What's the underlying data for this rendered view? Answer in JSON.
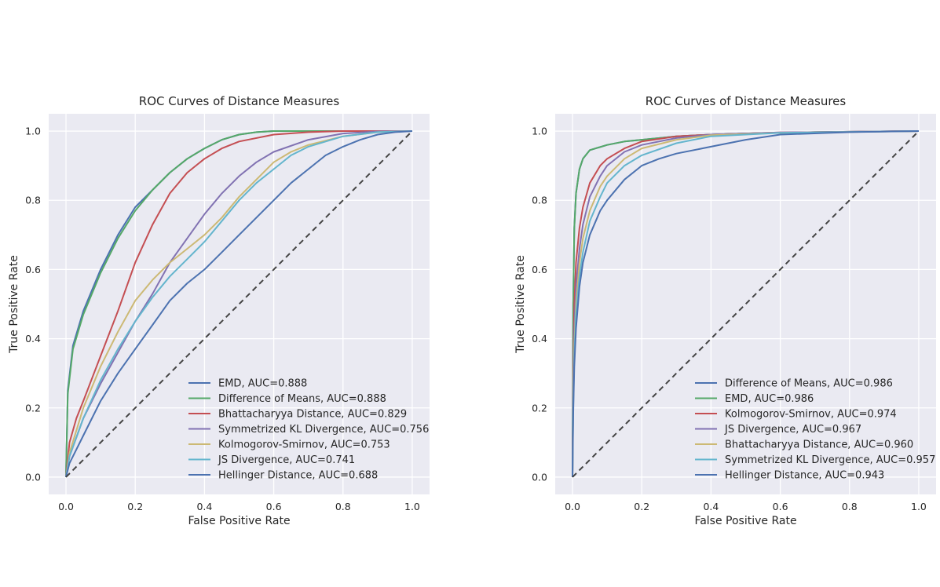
{
  "chart_data": [
    {
      "type": "line",
      "title": "ROC Curves of Distance Measures",
      "xlabel": "False Positive Rate",
      "ylabel": "True Positive Rate",
      "xlim": [
        -0.05,
        1.05
      ],
      "ylim": [
        -0.05,
        1.05
      ],
      "x_ticks": [
        "0.0",
        "0.2",
        "0.4",
        "0.6",
        "0.8",
        "1.0"
      ],
      "y_ticks": [
        "0.0",
        "0.2",
        "0.4",
        "0.6",
        "0.8",
        "1.0"
      ],
      "grid": true,
      "legend_position": "lower-right",
      "series": [
        {
          "name": "EMD, AUC=0.888",
          "color": "#4c72b0",
          "points": [
            [
              0,
              0
            ],
            [
              0.005,
              0.25
            ],
            [
              0.02,
              0.38
            ],
            [
              0.05,
              0.48
            ],
            [
              0.1,
              0.6
            ],
            [
              0.15,
              0.7
            ],
            [
              0.2,
              0.78
            ],
            [
              0.25,
              0.83
            ],
            [
              0.3,
              0.88
            ],
            [
              0.35,
              0.92
            ],
            [
              0.4,
              0.95
            ],
            [
              0.45,
              0.975
            ],
            [
              0.5,
              0.99
            ],
            [
              0.55,
              0.997
            ],
            [
              0.6,
              1.0
            ],
            [
              0.7,
              1.0
            ],
            [
              1,
              1
            ]
          ]
        },
        {
          "name": "Difference of Means, AUC=0.888",
          "color": "#55a868",
          "points": [
            [
              0,
              0
            ],
            [
              0.005,
              0.24
            ],
            [
              0.02,
              0.37
            ],
            [
              0.05,
              0.47
            ],
            [
              0.1,
              0.59
            ],
            [
              0.15,
              0.69
            ],
            [
              0.2,
              0.77
            ],
            [
              0.25,
              0.83
            ],
            [
              0.3,
              0.88
            ],
            [
              0.35,
              0.92
            ],
            [
              0.4,
              0.95
            ],
            [
              0.45,
              0.975
            ],
            [
              0.5,
              0.99
            ],
            [
              0.55,
              0.997
            ],
            [
              0.6,
              1.0
            ],
            [
              0.7,
              1.0
            ],
            [
              1,
              1
            ]
          ]
        },
        {
          "name": "Bhattacharyya Distance, AUC=0.829",
          "color": "#c44e52",
          "points": [
            [
              0,
              0
            ],
            [
              0.01,
              0.1
            ],
            [
              0.03,
              0.17
            ],
            [
              0.05,
              0.22
            ],
            [
              0.1,
              0.35
            ],
            [
              0.15,
              0.48
            ],
            [
              0.2,
              0.62
            ],
            [
              0.25,
              0.73
            ],
            [
              0.3,
              0.82
            ],
            [
              0.35,
              0.88
            ],
            [
              0.4,
              0.92
            ],
            [
              0.45,
              0.95
            ],
            [
              0.5,
              0.97
            ],
            [
              0.6,
              0.99
            ],
            [
              0.7,
              0.997
            ],
            [
              0.8,
              1.0
            ],
            [
              1,
              1
            ]
          ]
        },
        {
          "name": "Symmetrized KL Divergence, AUC=0.756",
          "color": "#8172b2",
          "points": [
            [
              0,
              0
            ],
            [
              0.01,
              0.06
            ],
            [
              0.05,
              0.17
            ],
            [
              0.1,
              0.27
            ],
            [
              0.15,
              0.36
            ],
            [
              0.2,
              0.45
            ],
            [
              0.25,
              0.53
            ],
            [
              0.3,
              0.62
            ],
            [
              0.35,
              0.69
            ],
            [
              0.4,
              0.76
            ],
            [
              0.45,
              0.82
            ],
            [
              0.5,
              0.87
            ],
            [
              0.55,
              0.91
            ],
            [
              0.6,
              0.94
            ],
            [
              0.7,
              0.975
            ],
            [
              0.8,
              0.993
            ],
            [
              0.9,
              0.999
            ],
            [
              1,
              1
            ]
          ]
        },
        {
          "name": "Kolmogorov-Smirnov, AUC=0.753",
          "color": "#ccb974",
          "points": [
            [
              0,
              0
            ],
            [
              0.01,
              0.07
            ],
            [
              0.05,
              0.2
            ],
            [
              0.1,
              0.32
            ],
            [
              0.15,
              0.42
            ],
            [
              0.2,
              0.51
            ],
            [
              0.25,
              0.57
            ],
            [
              0.3,
              0.62
            ],
            [
              0.35,
              0.66
            ],
            [
              0.4,
              0.7
            ],
            [
              0.45,
              0.75
            ],
            [
              0.5,
              0.81
            ],
            [
              0.55,
              0.86
            ],
            [
              0.6,
              0.91
            ],
            [
              0.65,
              0.94
            ],
            [
              0.7,
              0.96
            ],
            [
              0.8,
              0.985
            ],
            [
              0.9,
              0.997
            ],
            [
              1,
              1
            ]
          ]
        },
        {
          "name": "JS Divergence, AUC=0.741",
          "color": "#64b5cd",
          "points": [
            [
              0,
              0
            ],
            [
              0.01,
              0.06
            ],
            [
              0.05,
              0.17
            ],
            [
              0.1,
              0.28
            ],
            [
              0.15,
              0.37
            ],
            [
              0.2,
              0.45
            ],
            [
              0.25,
              0.52
            ],
            [
              0.3,
              0.58
            ],
            [
              0.35,
              0.63
            ],
            [
              0.4,
              0.68
            ],
            [
              0.45,
              0.74
            ],
            [
              0.5,
              0.8
            ],
            [
              0.55,
              0.85
            ],
            [
              0.6,
              0.89
            ],
            [
              0.65,
              0.93
            ],
            [
              0.7,
              0.955
            ],
            [
              0.8,
              0.985
            ],
            [
              0.9,
              0.997
            ],
            [
              1,
              1
            ]
          ]
        },
        {
          "name": "Hellinger Distance, AUC=0.688",
          "color": "#4c72b0",
          "points": [
            [
              0,
              0
            ],
            [
              0.01,
              0.04
            ],
            [
              0.05,
              0.12
            ],
            [
              0.1,
              0.22
            ],
            [
              0.15,
              0.3
            ],
            [
              0.2,
              0.37
            ],
            [
              0.25,
              0.44
            ],
            [
              0.3,
              0.51
            ],
            [
              0.35,
              0.56
            ],
            [
              0.4,
              0.6
            ],
            [
              0.45,
              0.65
            ],
            [
              0.5,
              0.7
            ],
            [
              0.55,
              0.75
            ],
            [
              0.6,
              0.8
            ],
            [
              0.65,
              0.85
            ],
            [
              0.7,
              0.89
            ],
            [
              0.75,
              0.93
            ],
            [
              0.8,
              0.955
            ],
            [
              0.85,
              0.975
            ],
            [
              0.9,
              0.99
            ],
            [
              0.95,
              0.997
            ],
            [
              1,
              1
            ]
          ]
        }
      ]
    },
    {
      "type": "line",
      "title": "ROC Curves of Distance Measures",
      "xlabel": "False Positive Rate",
      "ylabel": "True Positive Rate",
      "xlim": [
        -0.05,
        1.05
      ],
      "ylim": [
        -0.05,
        1.05
      ],
      "x_ticks": [
        "0.0",
        "0.2",
        "0.4",
        "0.6",
        "0.8",
        "1.0"
      ],
      "y_ticks": [
        "0.0",
        "0.2",
        "0.4",
        "0.6",
        "0.8",
        "1.0"
      ],
      "grid": true,
      "legend_position": "lower-right",
      "series": [
        {
          "name": "Difference of Means, AUC=0.986",
          "color": "#4c72b0",
          "points": [
            [
              0,
              0
            ],
            [
              0.002,
              0.5
            ],
            [
              0.005,
              0.72
            ],
            [
              0.01,
              0.82
            ],
            [
              0.02,
              0.89
            ],
            [
              0.03,
              0.92
            ],
            [
              0.05,
              0.945
            ],
            [
              0.1,
              0.96
            ],
            [
              0.15,
              0.97
            ],
            [
              0.2,
              0.975
            ],
            [
              0.3,
              0.985
            ],
            [
              0.4,
              0.99
            ],
            [
              0.5,
              0.993
            ],
            [
              0.7,
              0.997
            ],
            [
              1,
              1
            ]
          ]
        },
        {
          "name": "EMD, AUC=0.986",
          "color": "#55a868",
          "points": [
            [
              0,
              0
            ],
            [
              0.002,
              0.5
            ],
            [
              0.005,
              0.72
            ],
            [
              0.01,
              0.82
            ],
            [
              0.02,
              0.89
            ],
            [
              0.03,
              0.92
            ],
            [
              0.05,
              0.945
            ],
            [
              0.1,
              0.96
            ],
            [
              0.15,
              0.97
            ],
            [
              0.2,
              0.975
            ],
            [
              0.3,
              0.985
            ],
            [
              0.4,
              0.99
            ],
            [
              0.5,
              0.993
            ],
            [
              0.7,
              0.997
            ],
            [
              1,
              1
            ]
          ]
        },
        {
          "name": "Kolmogorov-Smirnov, AUC=0.974",
          "color": "#c44e52",
          "points": [
            [
              0,
              0
            ],
            [
              0.002,
              0.3
            ],
            [
              0.005,
              0.5
            ],
            [
              0.01,
              0.62
            ],
            [
              0.02,
              0.72
            ],
            [
              0.03,
              0.78
            ],
            [
              0.05,
              0.85
            ],
            [
              0.08,
              0.9
            ],
            [
              0.1,
              0.92
            ],
            [
              0.15,
              0.95
            ],
            [
              0.2,
              0.97
            ],
            [
              0.3,
              0.985
            ],
            [
              0.4,
              0.99
            ],
            [
              0.6,
              0.996
            ],
            [
              1,
              1
            ]
          ]
        },
        {
          "name": "JS Divergence, AUC=0.967",
          "color": "#8172b2",
          "points": [
            [
              0,
              0
            ],
            [
              0.002,
              0.25
            ],
            [
              0.005,
              0.42
            ],
            [
              0.01,
              0.55
            ],
            [
              0.02,
              0.66
            ],
            [
              0.03,
              0.73
            ],
            [
              0.05,
              0.81
            ],
            [
              0.08,
              0.87
            ],
            [
              0.1,
              0.9
            ],
            [
              0.15,
              0.94
            ],
            [
              0.2,
              0.96
            ],
            [
              0.3,
              0.98
            ],
            [
              0.4,
              0.99
            ],
            [
              0.6,
              0.996
            ],
            [
              1,
              1
            ]
          ]
        },
        {
          "name": "Bhattacharyya Distance, AUC=0.960",
          "color": "#ccb974",
          "points": [
            [
              0,
              0
            ],
            [
              0.002,
              0.22
            ],
            [
              0.005,
              0.38
            ],
            [
              0.01,
              0.5
            ],
            [
              0.02,
              0.62
            ],
            [
              0.03,
              0.69
            ],
            [
              0.05,
              0.77
            ],
            [
              0.08,
              0.84
            ],
            [
              0.1,
              0.87
            ],
            [
              0.15,
              0.92
            ],
            [
              0.2,
              0.95
            ],
            [
              0.3,
              0.975
            ],
            [
              0.4,
              0.988
            ],
            [
              0.6,
              0.995
            ],
            [
              1,
              1
            ]
          ]
        },
        {
          "name": "Symmetrized KL Divergence, AUC=0.957",
          "color": "#64b5cd",
          "points": [
            [
              0,
              0
            ],
            [
              0.002,
              0.2
            ],
            [
              0.005,
              0.35
            ],
            [
              0.01,
              0.47
            ],
            [
              0.02,
              0.58
            ],
            [
              0.03,
              0.65
            ],
            [
              0.05,
              0.74
            ],
            [
              0.08,
              0.81
            ],
            [
              0.1,
              0.85
            ],
            [
              0.15,
              0.9
            ],
            [
              0.2,
              0.93
            ],
            [
              0.3,
              0.965
            ],
            [
              0.4,
              0.985
            ],
            [
              0.6,
              0.995
            ],
            [
              1,
              1
            ]
          ]
        },
        {
          "name": "Hellinger Distance, AUC=0.943",
          "color": "#4c72b0",
          "points": [
            [
              0,
              0
            ],
            [
              0.002,
              0.18
            ],
            [
              0.005,
              0.32
            ],
            [
              0.01,
              0.43
            ],
            [
              0.02,
              0.55
            ],
            [
              0.03,
              0.62
            ],
            [
              0.05,
              0.7
            ],
            [
              0.08,
              0.77
            ],
            [
              0.1,
              0.8
            ],
            [
              0.15,
              0.86
            ],
            [
              0.2,
              0.9
            ],
            [
              0.25,
              0.92
            ],
            [
              0.3,
              0.935
            ],
            [
              0.4,
              0.955
            ],
            [
              0.5,
              0.975
            ],
            [
              0.6,
              0.99
            ],
            [
              0.8,
              0.997
            ],
            [
              1,
              1
            ]
          ]
        }
      ]
    }
  ]
}
